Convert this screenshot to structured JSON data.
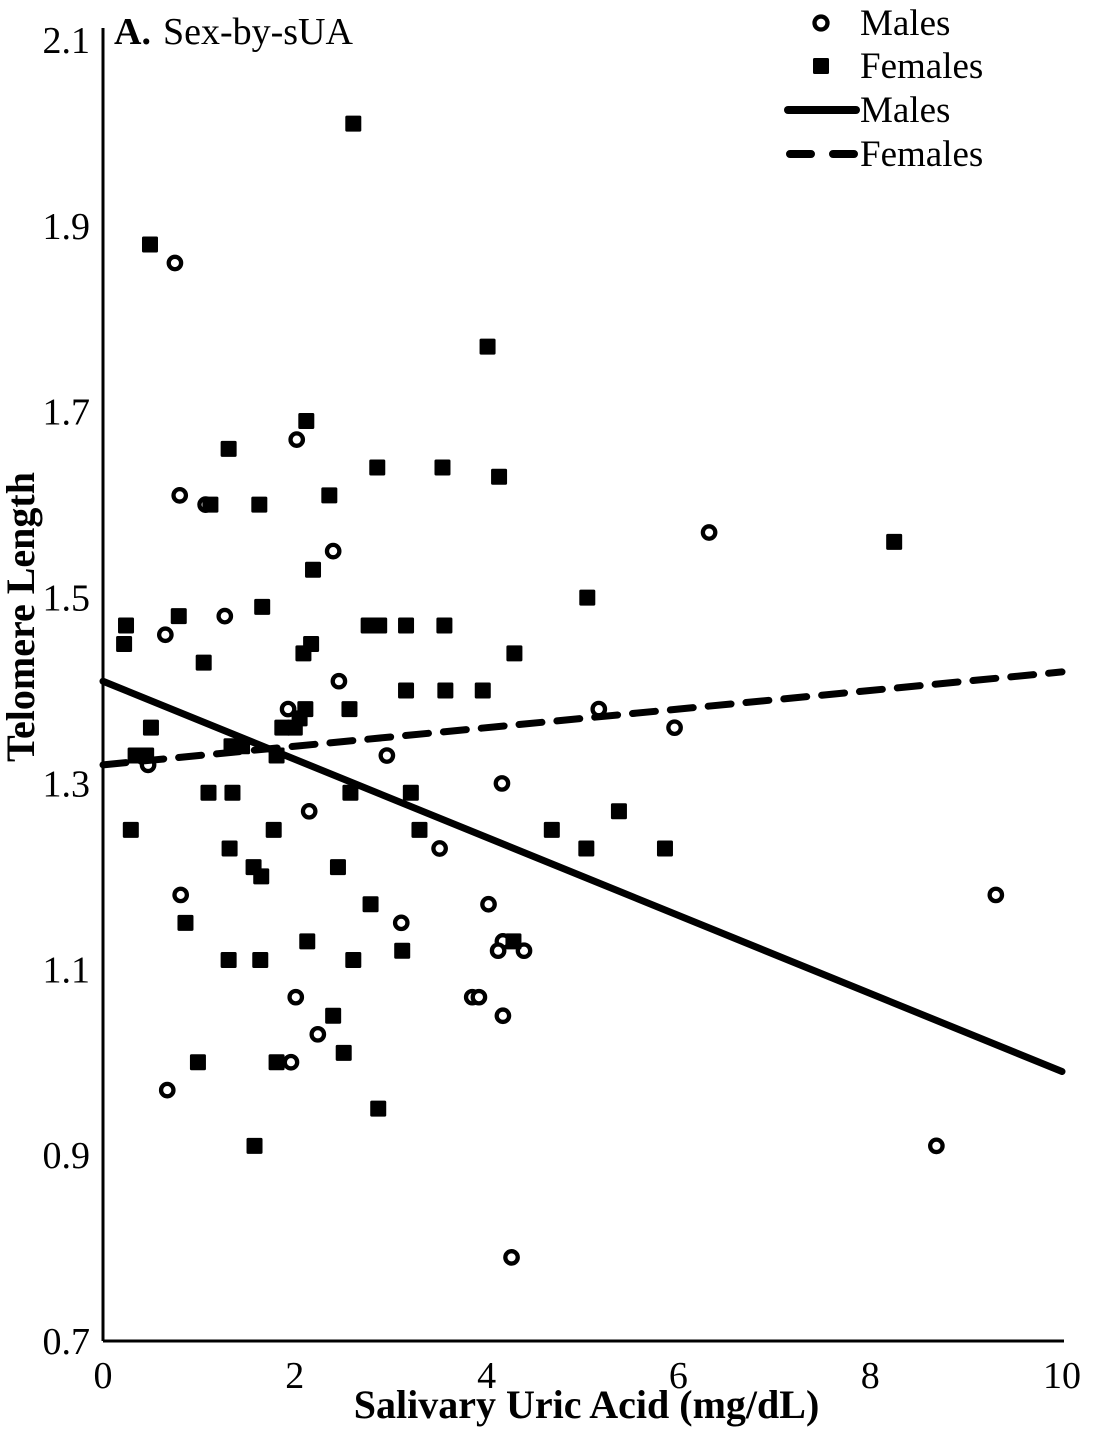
{
  "figure": {
    "panel_label": "A.",
    "panel_title": "Sex-by-sUA"
  },
  "legend": {
    "items": [
      {
        "label": "Males",
        "marker": "open-circle"
      },
      {
        "label": "Females",
        "marker": "filled-square"
      },
      {
        "label": "Males",
        "marker": "solid-line"
      },
      {
        "label": "Females",
        "marker": "dashed-line"
      }
    ]
  },
  "chart_data": {
    "type": "scatter",
    "title": "A. Sex-by-sUA",
    "xlabel": "Salivary Uric Acid (mg/dL)",
    "ylabel": "Telomere Length",
    "xlim": [
      0,
      10
    ],
    "ylim": [
      0.7,
      2.1
    ],
    "x_ticks": [
      0,
      2,
      4,
      6,
      8,
      10
    ],
    "x_tick_labels": [
      "0",
      "2",
      "4",
      "6",
      "8",
      "10"
    ],
    "y_ticks": [
      0.7,
      0.9,
      1.1,
      1.3,
      1.5,
      1.7,
      1.9,
      2.1
    ],
    "y_tick_labels": [
      "0.7",
      "0.9",
      "1.1",
      "1.3",
      "1.5",
      "1.7",
      "1.9",
      "2.1"
    ],
    "grid": false,
    "legend_position": "top-right",
    "colors": {
      "foreground": "#000000",
      "background": "#ffffff"
    },
    "series": [
      {
        "name": "Males",
        "kind": "scatter",
        "marker": "open-circle",
        "points": [
          [
            0.75,
            1.86
          ],
          [
            2.02,
            1.67
          ],
          [
            0.8,
            1.61
          ],
          [
            1.07,
            1.6
          ],
          [
            2.4,
            1.55
          ],
          [
            1.27,
            1.48
          ],
          [
            0.65,
            1.46
          ],
          [
            2.46,
            1.41
          ],
          [
            1.93,
            1.38
          ],
          [
            6.32,
            1.57
          ],
          [
            5.17,
            1.38
          ],
          [
            5.96,
            1.36
          ],
          [
            0.47,
            1.32
          ],
          [
            2.96,
            1.33
          ],
          [
            4.16,
            1.3
          ],
          [
            2.15,
            1.27
          ],
          [
            3.51,
            1.23
          ],
          [
            0.81,
            1.18
          ],
          [
            3.11,
            1.15
          ],
          [
            4.02,
            1.17
          ],
          [
            4.17,
            1.13
          ],
          [
            4.12,
            1.12
          ],
          [
            4.39,
            1.12
          ],
          [
            9.31,
            1.18
          ],
          [
            2.01,
            1.07
          ],
          [
            2.24,
            1.03
          ],
          [
            3.85,
            1.07
          ],
          [
            3.92,
            1.07
          ],
          [
            4.17,
            1.05
          ],
          [
            1.96,
            1.0
          ],
          [
            0.67,
            0.97
          ],
          [
            8.69,
            0.91
          ],
          [
            4.26,
            0.79
          ]
        ]
      },
      {
        "name": "Females",
        "kind": "scatter",
        "marker": "filled-square",
        "points": [
          [
            2.61,
            2.01
          ],
          [
            0.49,
            1.88
          ],
          [
            4.01,
            1.77
          ],
          [
            2.12,
            1.69
          ],
          [
            1.31,
            1.66
          ],
          [
            2.86,
            1.64
          ],
          [
            3.54,
            1.64
          ],
          [
            4.13,
            1.63
          ],
          [
            1.12,
            1.6
          ],
          [
            1.63,
            1.6
          ],
          [
            2.36,
            1.61
          ],
          [
            2.19,
            1.53
          ],
          [
            1.66,
            1.49
          ],
          [
            0.79,
            1.48
          ],
          [
            0.24,
            1.47
          ],
          [
            0.22,
            1.45
          ],
          [
            1.05,
            1.43
          ],
          [
            2.77,
            1.47
          ],
          [
            2.88,
            1.47
          ],
          [
            3.16,
            1.47
          ],
          [
            2.17,
            1.45
          ],
          [
            2.09,
            1.44
          ],
          [
            3.56,
            1.47
          ],
          [
            4.29,
            1.44
          ],
          [
            5.05,
            1.5
          ],
          [
            8.25,
            1.56
          ],
          [
            2.57,
            1.38
          ],
          [
            3.16,
            1.4
          ],
          [
            3.57,
            1.4
          ],
          [
            3.96,
            1.4
          ],
          [
            2.11,
            1.38
          ],
          [
            2.05,
            1.37
          ],
          [
            1.87,
            1.36
          ],
          [
            2.0,
            1.36
          ],
          [
            0.5,
            1.36
          ],
          [
            0.34,
            1.33
          ],
          [
            0.45,
            1.33
          ],
          [
            1.34,
            1.34
          ],
          [
            1.45,
            1.34
          ],
          [
            1.81,
            1.33
          ],
          [
            1.1,
            1.29
          ],
          [
            1.35,
            1.29
          ],
          [
            2.58,
            1.29
          ],
          [
            3.21,
            1.29
          ],
          [
            0.29,
            1.25
          ],
          [
            1.78,
            1.25
          ],
          [
            1.32,
            1.23
          ],
          [
            3.3,
            1.25
          ],
          [
            1.57,
            1.21
          ],
          [
            1.65,
            1.2
          ],
          [
            2.45,
            1.21
          ],
          [
            0.86,
            1.15
          ],
          [
            2.79,
            1.17
          ],
          [
            2.13,
            1.13
          ],
          [
            1.31,
            1.11
          ],
          [
            1.64,
            1.11
          ],
          [
            2.61,
            1.11
          ],
          [
            3.12,
            1.12
          ],
          [
            4.68,
            1.25
          ],
          [
            5.38,
            1.27
          ],
          [
            5.04,
            1.23
          ],
          [
            5.86,
            1.23
          ],
          [
            4.28,
            1.13
          ],
          [
            2.4,
            1.05
          ],
          [
            2.51,
            1.01
          ],
          [
            0.99,
            1.0
          ],
          [
            1.81,
            1.0
          ],
          [
            2.87,
            0.95
          ],
          [
            1.58,
            0.91
          ]
        ]
      },
      {
        "name": "Males",
        "kind": "trendline",
        "style": "solid",
        "from": [
          0,
          1.41
        ],
        "to": [
          10,
          0.99
        ]
      },
      {
        "name": "Females",
        "kind": "trendline",
        "style": "dashed",
        "from": [
          0,
          1.32
        ],
        "to": [
          10,
          1.42
        ]
      }
    ]
  }
}
